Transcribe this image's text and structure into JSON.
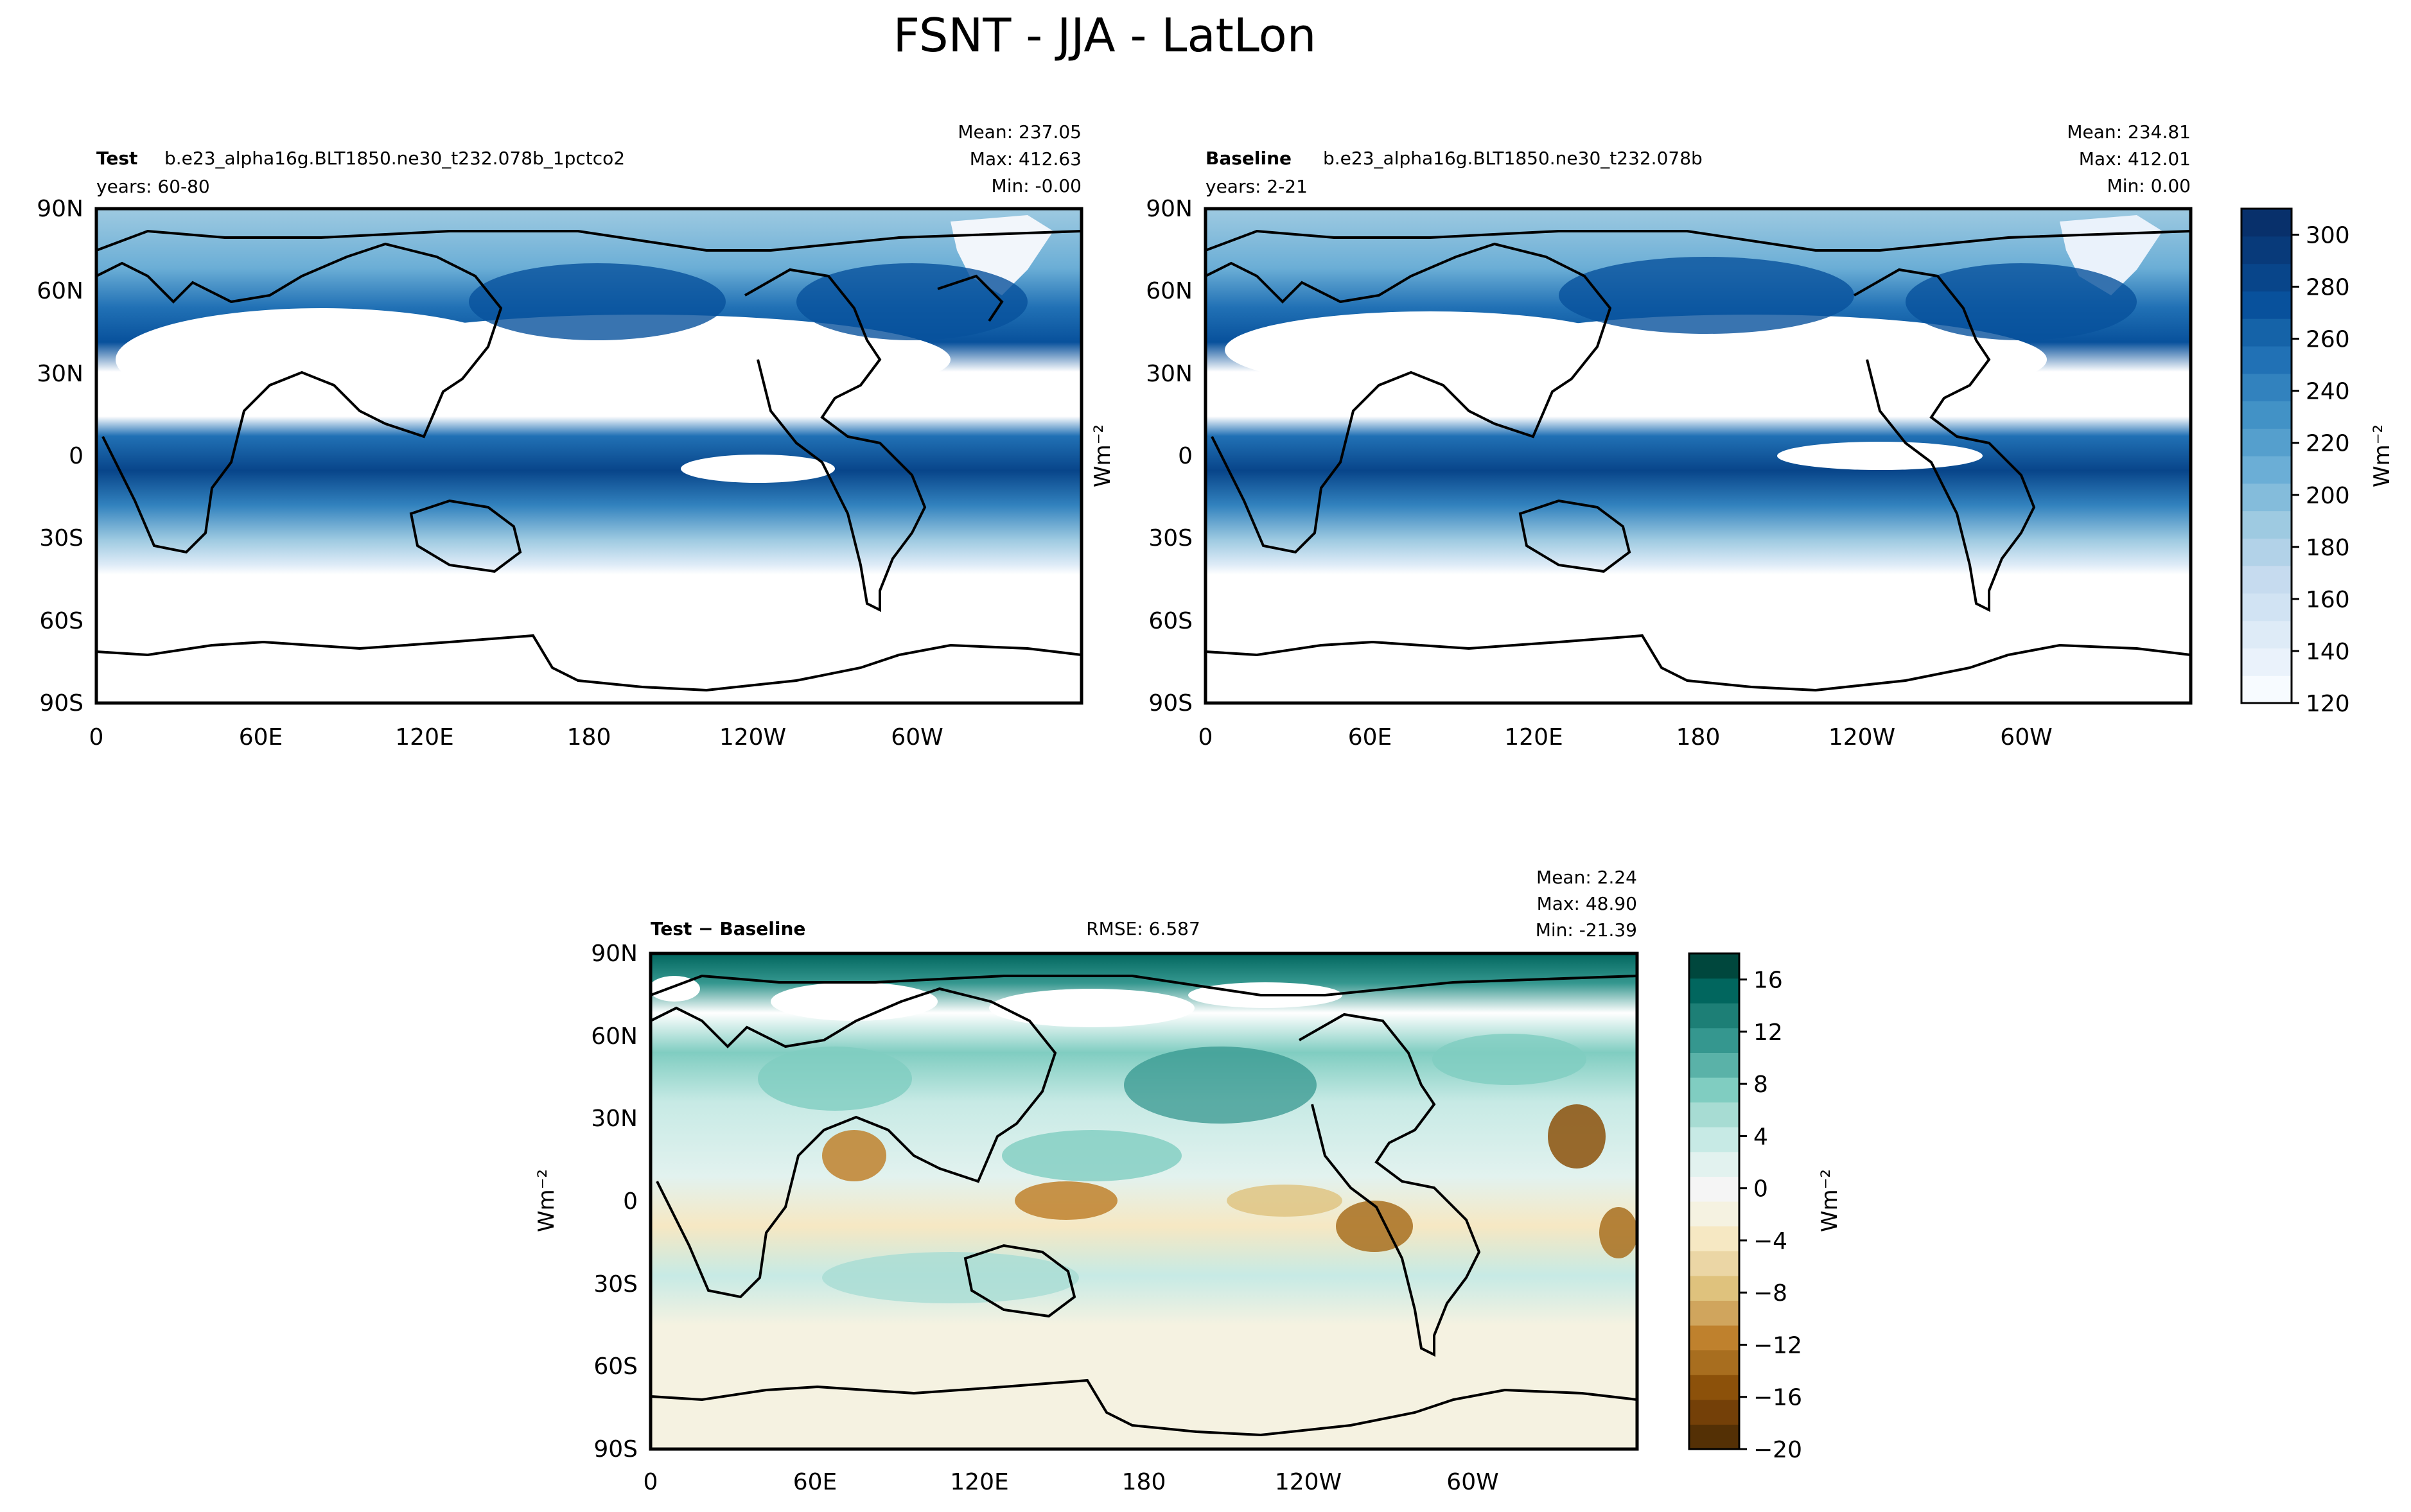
{
  "title": "FSNT - JJA - LatLon",
  "colors": {
    "blues": [
      "#f7fbff",
      "#eaf2fb",
      "#deebf7",
      "#d1e3f3",
      "#c6dbef",
      "#b2d2e8",
      "#9ecae1",
      "#84bcdb",
      "#6baed6",
      "#559fcd",
      "#4292c6",
      "#3282be",
      "#2171b5",
      "#1563a8",
      "#08519c",
      "#08458a",
      "#083a7a",
      "#08306b"
    ],
    "diverging": [
      "#543005",
      "#744008",
      "#8c510a",
      "#a86e1f",
      "#bf812d",
      "#d0a55d",
      "#dfc27d",
      "#ebd6a5",
      "#f6e8c3",
      "#f5f2e1",
      "#f5f5f5",
      "#e2f2ef",
      "#c7eae5",
      "#a7dcd3",
      "#80cdc1",
      "#5ab2a8",
      "#35978f",
      "#1d7f76",
      "#01665e",
      "#00473d"
    ],
    "land_outline": "#000000"
  },
  "panels": {
    "test": {
      "label_bold": "Test",
      "label_text": "b.e23_alpha16g.BLT1850.ne30_t232.078b_1pctco2",
      "years": "years: 60-80",
      "stats": [
        "Mean: 237.05",
        "Max: 412.63",
        "Min: -0.00"
      ]
    },
    "baseline": {
      "label_bold": "Baseline",
      "label_text": "b.e23_alpha16g.BLT1850.ne30_t232.078b",
      "years": "years: 2-21",
      "stats": [
        "Mean: 234.81",
        "Max: 412.01",
        "Min:  0.00"
      ]
    },
    "diff": {
      "label": "Test − Baseline",
      "rmse": "RMSE: 6.587",
      "stats": [
        "Mean:  2.24",
        "Max: 48.90",
        "Min: -21.39"
      ]
    }
  },
  "chart_data": [
    {
      "type": "heatmap",
      "name": "Test",
      "x_ticks": [
        "0",
        "60E",
        "120E",
        "180",
        "120W",
        "60W"
      ],
      "y_ticks": [
        "90N",
        "60N",
        "30N",
        "0",
        "30S",
        "60S",
        "90S"
      ],
      "colorbar_ref": "top"
    },
    {
      "type": "heatmap",
      "name": "Baseline",
      "x_ticks": [
        "0",
        "60E",
        "120E",
        "180",
        "120W",
        "60W"
      ],
      "y_ticks": [
        "90N",
        "60N",
        "30N",
        "0",
        "30S",
        "60S",
        "90S"
      ],
      "colorbar_ref": "top"
    },
    {
      "type": "heatmap",
      "name": "Test - Baseline",
      "x_ticks": [
        "0",
        "60E",
        "120E",
        "180",
        "120W",
        "60W"
      ],
      "y_ticks": [
        "90N",
        "60N",
        "30N",
        "0",
        "30S",
        "60S",
        "90S"
      ],
      "colorbar_ref": "diff"
    }
  ],
  "colorbars": {
    "top": {
      "unit": "Wm⁻²",
      "min": 120,
      "max": 310,
      "ticks": [
        "120",
        "140",
        "160",
        "180",
        "200",
        "220",
        "240",
        "260",
        "280",
        "300"
      ],
      "tick_values": [
        120,
        140,
        160,
        180,
        200,
        220,
        240,
        260,
        280,
        300
      ]
    },
    "diff": {
      "unit": "Wm⁻²",
      "min": -20,
      "max": 18,
      "ticks": [
        "−20",
        "−16",
        "−12",
        "−8",
        "−4",
        "0",
        "4",
        "8",
        "12",
        "16"
      ],
      "tick_values": [
        -20,
        -16,
        -12,
        -8,
        -4,
        0,
        4,
        8,
        12,
        16
      ]
    }
  },
  "axis_unit_label": "Wm⁻²"
}
